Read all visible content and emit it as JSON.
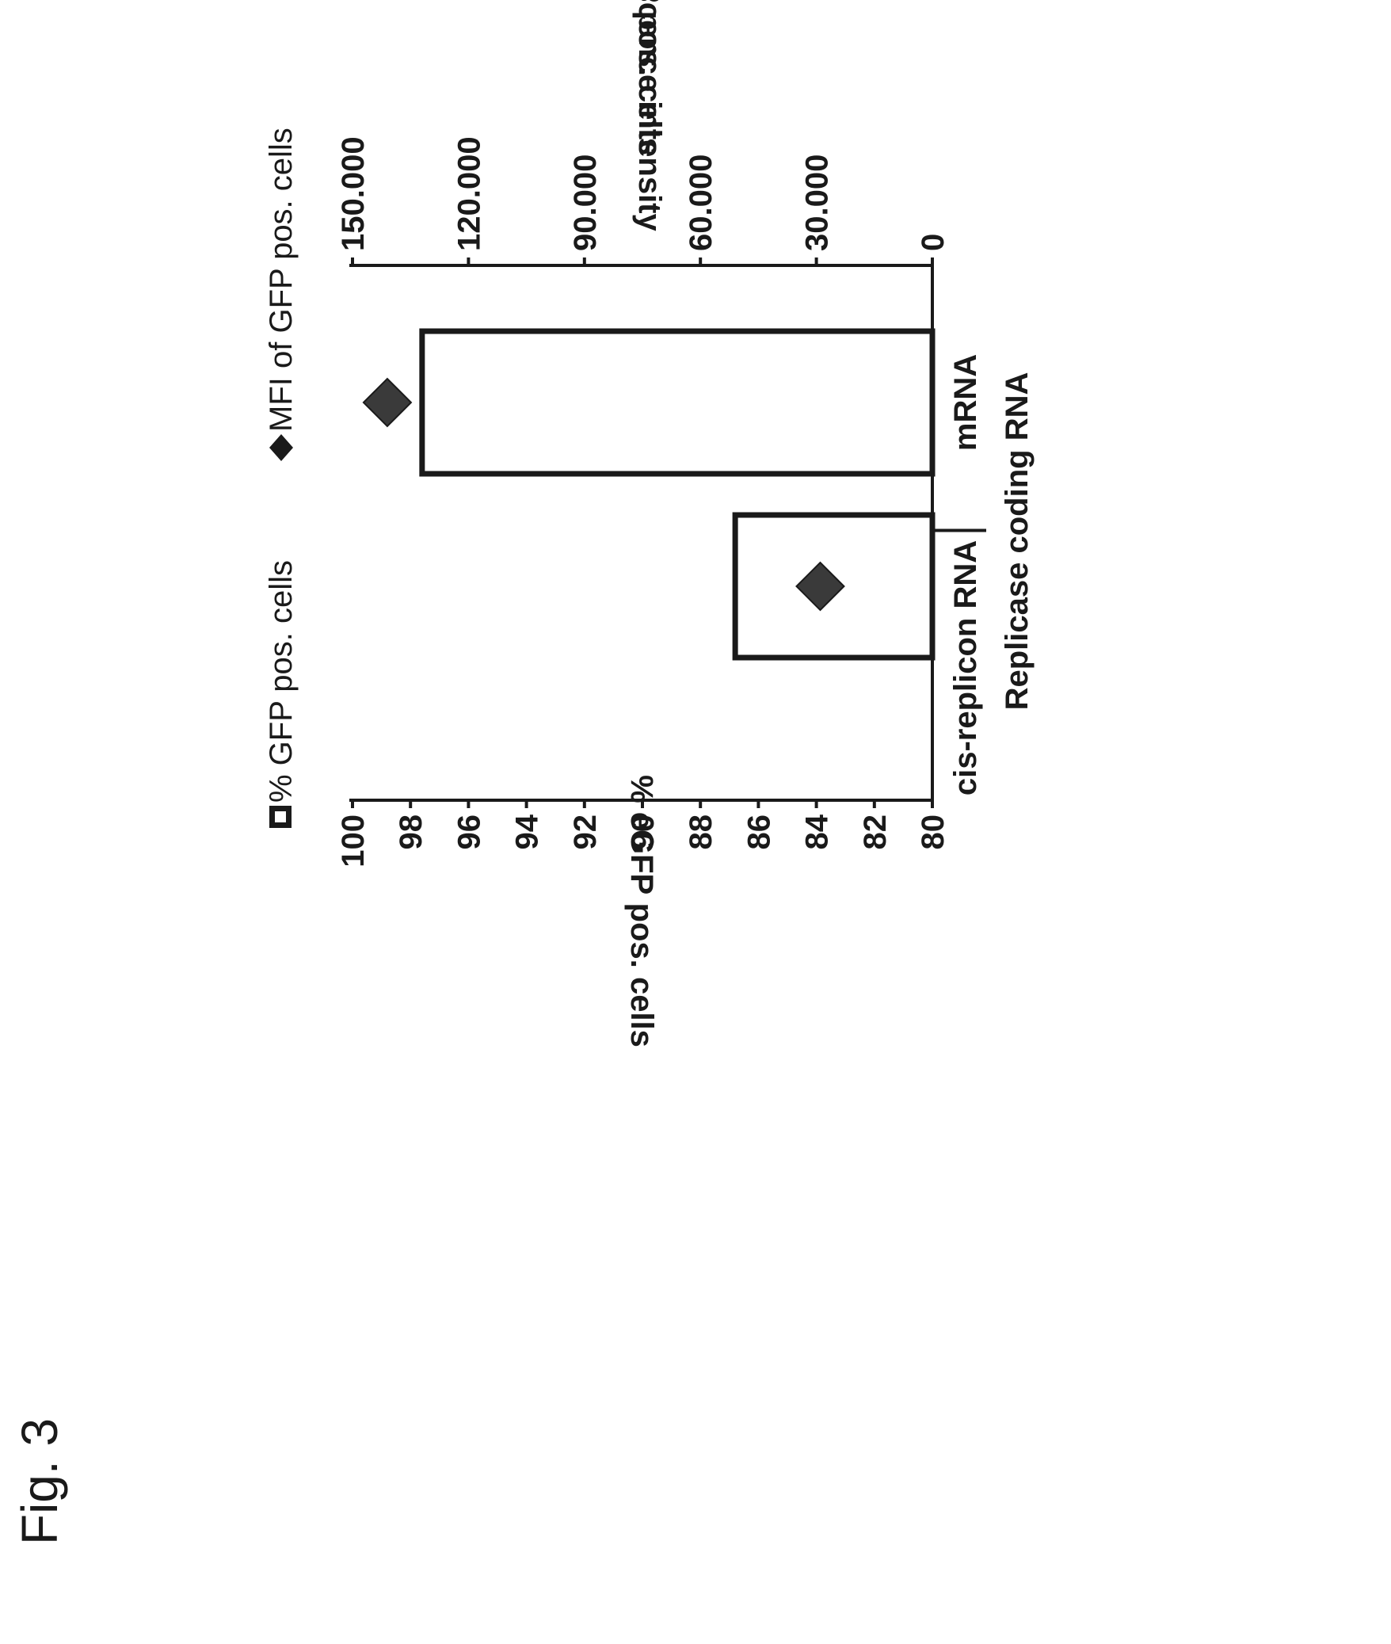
{
  "figure_label": "Fig. 3",
  "chart_data": {
    "type": "bar",
    "categories": [
      "cis-replicon RNA",
      "mRNA"
    ],
    "category_group_label": "Replicase coding RNA",
    "series": [
      {
        "name": "% GFP pos. cells",
        "kind": "bar",
        "axis": "left",
        "values": [
          86.8,
          97.6
        ]
      },
      {
        "name": "MFI of GFP pos. cells",
        "kind": "marker",
        "marker": "diamond",
        "axis": "right",
        "values": [
          29000,
          141000
        ]
      }
    ],
    "left_axis": {
      "label": "% eGFP pos. cells",
      "range": [
        80,
        100
      ],
      "ticks": [
        80,
        82,
        84,
        86,
        88,
        90,
        92,
        94,
        96,
        98,
        100
      ],
      "tick_labels": [
        "80",
        "82",
        "84",
        "86",
        "88",
        "90",
        "92",
        "94",
        "96",
        "98",
        "100"
      ]
    },
    "right_axis": {
      "label_line1": "Fluorescence intensity",
      "label_line2": "of eGFP pos. cells",
      "range": [
        0,
        150000
      ],
      "ticks": [
        0,
        30000,
        60000,
        90000,
        120000,
        150000
      ],
      "tick_labels": [
        "0",
        "30.000",
        "60.000",
        "90.000",
        "120.000",
        "150.000"
      ]
    },
    "legend": [
      {
        "label": "% GFP pos. cells",
        "symbol": "square"
      },
      {
        "label": "MFI of GFP pos. cells",
        "symbol": "diamond"
      }
    ],
    "legend_position": "top",
    "grid": false,
    "orientation": "rotated-90-ccw",
    "colors": {
      "bar_fill": "#ffffff",
      "bar_stroke": "#1a1a1a",
      "marker": "#3a3a3a",
      "axis": "#1a1a1a"
    }
  }
}
